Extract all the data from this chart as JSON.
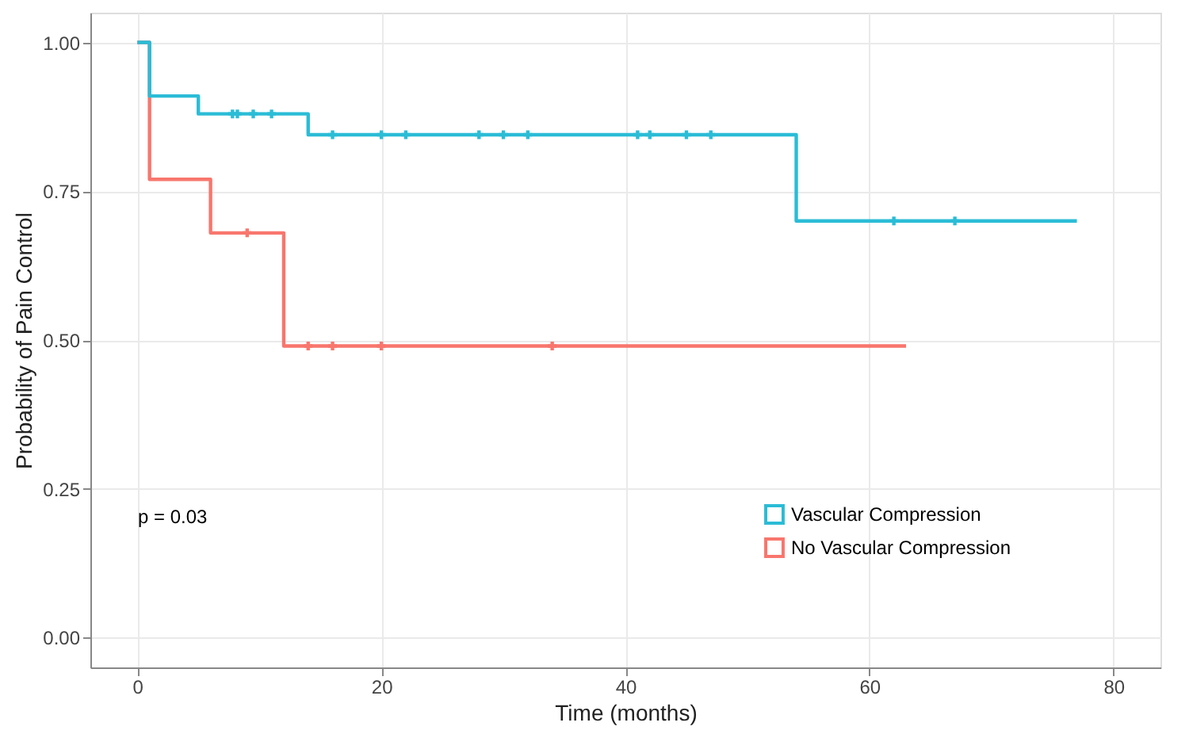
{
  "chart_data": {
    "type": "step",
    "xlabel": "Time (months)",
    "ylabel": "Probability of Pain Control",
    "xlim": [
      -3.85,
      83.85
    ],
    "ylim": [
      -0.05,
      1.05
    ],
    "xticks": [
      0,
      20,
      40,
      60,
      80
    ],
    "yticks": [
      {
        "value": 0,
        "label": "0.00"
      },
      {
        "value": 0.25,
        "label": "0.25"
      },
      {
        "value": 0.5,
        "label": "0.50"
      },
      {
        "value": 0.75,
        "label": "0.75"
      },
      {
        "value": 1,
        "label": "1.00"
      }
    ],
    "grid": true,
    "legend": "bottom right",
    "line_style": "solid",
    "annotations": [
      "p = 0.03"
    ],
    "series": [
      {
        "name": "Vascular Compression",
        "color": "#2bbcd6",
        "x": [
          0,
          1,
          5,
          14,
          54,
          77
        ],
        "values": [
          1.0,
          0.91,
          0.88,
          0.845,
          0.7,
          0.7
        ]
      },
      {
        "name": "No Vascular Compression",
        "color": "#f8766d",
        "x": [
          0,
          1,
          6,
          12,
          63
        ],
        "values": [
          1.0,
          0.77,
          0.68,
          0.49,
          0.49
        ]
      },
      {
        "type": "scatter",
        "marker": "cross",
        "color": "#2bbcd6",
        "x": [
          7.8,
          8.2,
          9.5,
          11,
          16,
          20,
          22,
          28,
          30,
          32,
          41,
          42,
          45,
          47,
          62,
          67
        ],
        "values": [
          0.88,
          0.88,
          0.88,
          0.88,
          0.845,
          0.845,
          0.845,
          0.845,
          0.845,
          0.845,
          0.845,
          0.845,
          0.845,
          0.845,
          0.7,
          0.7
        ]
      },
      {
        "type": "scatter",
        "marker": "cross",
        "color": "#f8766d",
        "x": [
          9,
          14,
          16,
          20,
          34
        ],
        "values": [
          0.68,
          0.49,
          0.49,
          0.49,
          0.49
        ]
      }
    ]
  }
}
